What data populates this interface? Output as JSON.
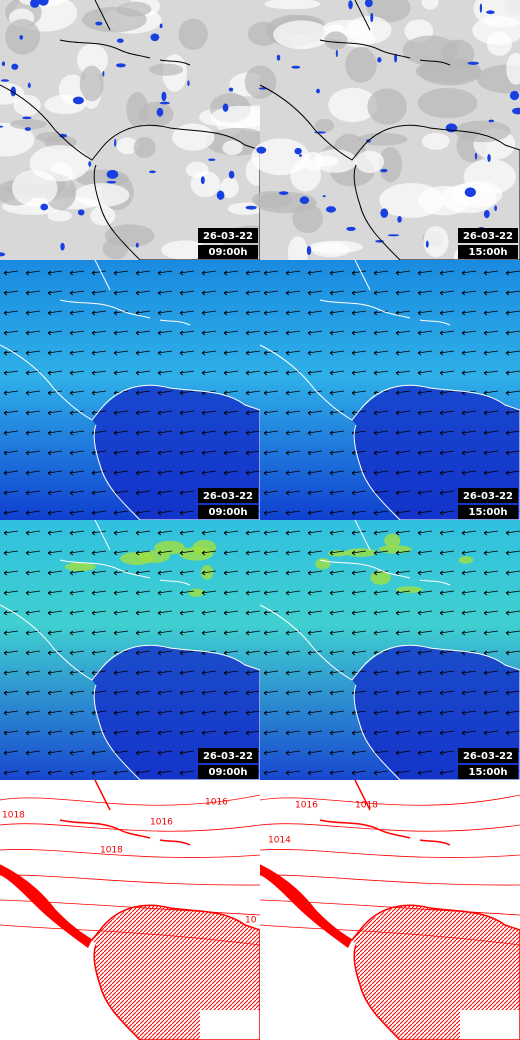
{
  "rows": [
    {
      "kind": "satellite",
      "panels": [
        {
          "date": "26-03-22",
          "time": "09:00h"
        },
        {
          "date": "26-03-22",
          "time": "15:00h"
        }
      ]
    },
    {
      "kind": "wind",
      "panels": [
        {
          "date": "26-03-22",
          "time": "09:00h"
        },
        {
          "date": "26-03-22",
          "time": "15:00h"
        }
      ]
    },
    {
      "kind": "gust",
      "panels": [
        {
          "date": "26-03-22",
          "time": "09:00h"
        },
        {
          "date": "26-03-22",
          "time": "15:00h"
        }
      ]
    },
    {
      "kind": "pressure",
      "isobars": [
        [
          "1018",
          "1016",
          "1018",
          "1016",
          "10"
        ],
        [
          "1016",
          "1014",
          "1018"
        ]
      ]
    }
  ]
}
